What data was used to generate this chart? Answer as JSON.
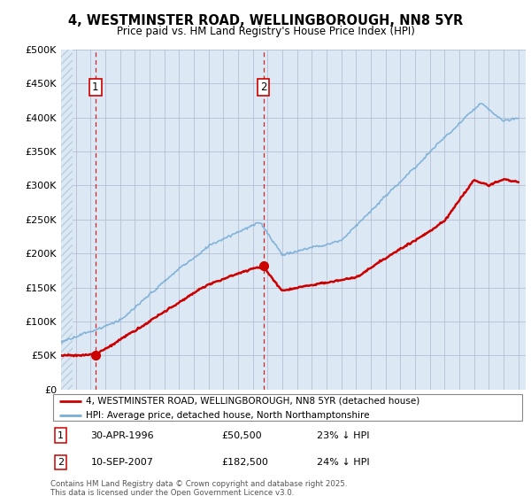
{
  "title": "4, WESTMINSTER ROAD, WELLINGBOROUGH, NN8 5YR",
  "subtitle": "Price paid vs. HM Land Registry's House Price Index (HPI)",
  "ylim": [
    0,
    500000
  ],
  "yticks": [
    0,
    50000,
    100000,
    150000,
    200000,
    250000,
    300000,
    350000,
    400000,
    450000,
    500000
  ],
  "xlim_start": 1994.0,
  "xlim_end": 2025.5,
  "bg_color": "#dce9f5",
  "hatch_color": "#b8cfe0",
  "grid_color": "#b0b8cc",
  "line_color_property": "#cc0000",
  "line_color_hpi": "#7aaed6",
  "sale1_year": 1996.33,
  "sale1_price": 50500,
  "sale2_year": 2007.71,
  "sale2_price": 182500,
  "legend_label1": "4, WESTMINSTER ROAD, WELLINGBOROUGH, NN8 5YR (detached house)",
  "legend_label2": "HPI: Average price, detached house, North Northamptonshire",
  "table_row1": [
    "1",
    "30-APR-1996",
    "£50,500",
    "23% ↓ HPI"
  ],
  "table_row2": [
    "2",
    "10-SEP-2007",
    "£182,500",
    "24% ↓ HPI"
  ],
  "footnote": "Contains HM Land Registry data © Crown copyright and database right 2025.\nThis data is licensed under the Open Government Licence v3.0."
}
